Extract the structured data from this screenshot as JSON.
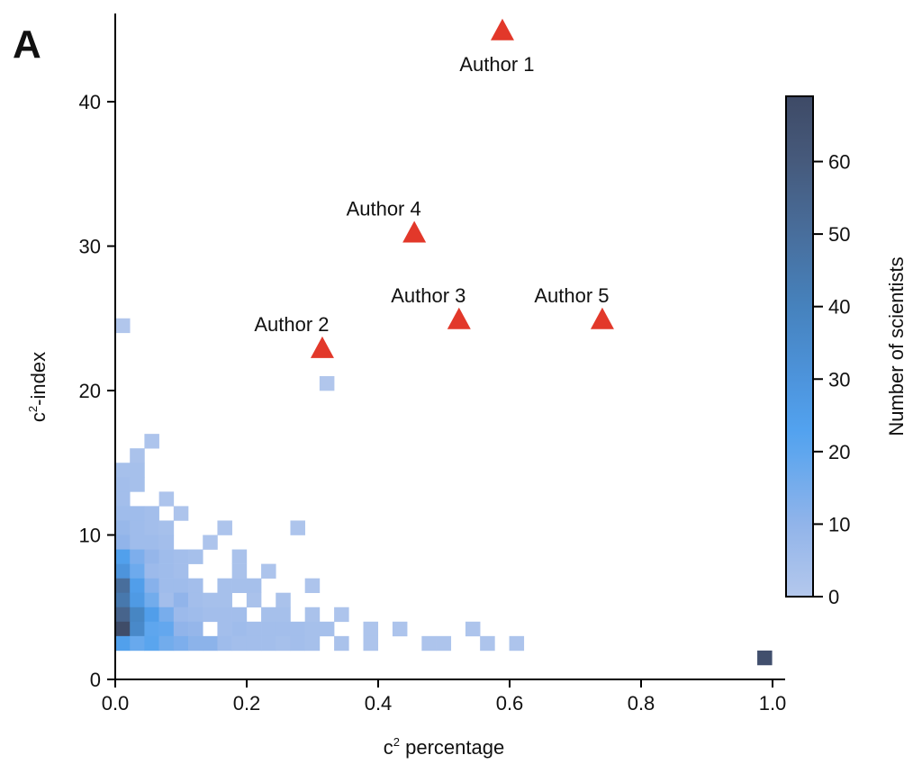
{
  "panel_label": "A",
  "chart_data": {
    "type": "heatmap",
    "xlabel_base": "c",
    "xlabel_sup": "2",
    "xlabel_rest": " percentage",
    "ylabel_base": "c",
    "ylabel_sup": "2",
    "ylabel_rest": "-index",
    "xlim": [
      0,
      1.0
    ],
    "ylim": [
      0,
      46
    ],
    "xticks": [
      "0.0",
      "0.2",
      "0.4",
      "0.6",
      "0.8",
      "1.0"
    ],
    "xtick_values": [
      0,
      0.2,
      0.4,
      0.6,
      0.8,
      1.0
    ],
    "yticks": [
      "0",
      "10",
      "20",
      "30",
      "40"
    ],
    "ytick_values": [
      0,
      10,
      20,
      30,
      40
    ],
    "grid": false,
    "bin_width_x": 0.0222,
    "bin_height_y": 1,
    "cells_note": "each cell = [x bin index, y bin index (y lower edge), count]",
    "cells": [
      [
        2,
        16,
        2
      ],
      [
        1,
        15,
        3
      ],
      [
        0,
        14,
        4
      ],
      [
        1,
        14,
        4
      ],
      [
        0,
        13,
        5
      ],
      [
        1,
        13,
        4
      ],
      [
        0,
        12,
        5
      ],
      [
        3,
        12,
        2
      ],
      [
        0,
        11,
        6
      ],
      [
        1,
        11,
        6
      ],
      [
        2,
        11,
        5
      ],
      [
        4,
        11,
        2
      ],
      [
        0,
        10,
        8
      ],
      [
        1,
        10,
        6
      ],
      [
        2,
        10,
        5
      ],
      [
        3,
        10,
        4
      ],
      [
        7,
        10,
        2
      ],
      [
        12,
        10,
        2
      ],
      [
        0,
        9,
        10
      ],
      [
        1,
        9,
        6
      ],
      [
        2,
        9,
        6
      ],
      [
        3,
        9,
        5
      ],
      [
        6,
        9,
        2
      ],
      [
        0,
        8,
        24
      ],
      [
        1,
        8,
        14
      ],
      [
        2,
        8,
        9
      ],
      [
        3,
        8,
        6
      ],
      [
        4,
        8,
        5
      ],
      [
        5,
        8,
        4
      ],
      [
        8,
        8,
        3
      ],
      [
        0,
        7,
        30
      ],
      [
        1,
        7,
        17
      ],
      [
        2,
        7,
        7
      ],
      [
        3,
        7,
        6
      ],
      [
        4,
        7,
        5
      ],
      [
        8,
        7,
        3
      ],
      [
        10,
        7,
        2
      ],
      [
        0,
        6,
        50
      ],
      [
        1,
        6,
        25
      ],
      [
        2,
        6,
        12
      ],
      [
        3,
        6,
        6
      ],
      [
        4,
        6,
        6
      ],
      [
        5,
        6,
        5
      ],
      [
        7,
        6,
        4
      ],
      [
        8,
        6,
        4
      ],
      [
        9,
        6,
        4
      ],
      [
        13,
        6,
        2
      ],
      [
        0,
        5,
        45
      ],
      [
        1,
        5,
        27
      ],
      [
        2,
        5,
        16
      ],
      [
        3,
        5,
        5
      ],
      [
        4,
        5,
        10
      ],
      [
        5,
        5,
        5
      ],
      [
        6,
        5,
        4
      ],
      [
        7,
        5,
        4
      ],
      [
        9,
        5,
        3
      ],
      [
        11,
        5,
        3
      ],
      [
        0,
        4,
        55
      ],
      [
        1,
        4,
        38
      ],
      [
        2,
        4,
        25
      ],
      [
        3,
        4,
        15
      ],
      [
        4,
        4,
        7
      ],
      [
        5,
        4,
        6
      ],
      [
        6,
        4,
        5
      ],
      [
        7,
        4,
        5
      ],
      [
        8,
        4,
        5
      ],
      [
        10,
        4,
        4
      ],
      [
        11,
        4,
        4
      ],
      [
        13,
        4,
        3
      ],
      [
        15,
        4,
        2
      ],
      [
        0,
        3,
        68
      ],
      [
        1,
        3,
        36
      ],
      [
        2,
        3,
        20
      ],
      [
        3,
        3,
        19
      ],
      [
        4,
        3,
        10
      ],
      [
        5,
        3,
        9
      ],
      [
        7,
        3,
        5
      ],
      [
        8,
        3,
        6
      ],
      [
        9,
        3,
        5
      ],
      [
        10,
        3,
        5
      ],
      [
        11,
        3,
        5
      ],
      [
        12,
        3,
        5
      ],
      [
        13,
        3,
        4
      ],
      [
        14,
        3,
        4
      ],
      [
        17,
        3,
        2
      ],
      [
        19,
        3,
        2
      ],
      [
        24,
        3,
        2
      ],
      [
        0,
        2,
        24
      ],
      [
        1,
        2,
        18
      ],
      [
        2,
        2,
        21
      ],
      [
        3,
        2,
        16
      ],
      [
        4,
        2,
        14
      ],
      [
        5,
        2,
        11
      ],
      [
        6,
        2,
        11
      ],
      [
        7,
        2,
        6
      ],
      [
        8,
        2,
        5
      ],
      [
        9,
        2,
        5
      ],
      [
        10,
        2,
        5
      ],
      [
        11,
        2,
        4
      ],
      [
        12,
        2,
        5
      ],
      [
        13,
        2,
        4
      ],
      [
        15,
        2,
        3
      ],
      [
        17,
        2,
        2
      ],
      [
        21,
        2,
        2
      ],
      [
        22,
        2,
        2
      ],
      [
        25,
        2,
        2
      ],
      [
        27,
        2,
        2
      ],
      [
        0,
        24,
        1
      ],
      [
        14,
        20,
        1
      ],
      [
        44,
        1,
        66
      ]
    ],
    "authors": [
      {
        "label": "Author 1",
        "x": 0.589,
        "y": 45
      },
      {
        "label": "Author 4",
        "x": 0.455,
        "y": 31
      },
      {
        "label": "Author 3",
        "x": 0.523,
        "y": 25
      },
      {
        "label": "Author 5",
        "x": 0.741,
        "y": 25
      },
      {
        "label": "Author 2",
        "x": 0.315,
        "y": 23
      }
    ],
    "marker_color": "#e2382a",
    "colorbar": {
      "label": "Number of scientists",
      "range": [
        0,
        69
      ],
      "ticks": [
        "0",
        "10",
        "20",
        "30",
        "40",
        "50",
        "60"
      ],
      "tick_values": [
        0,
        10,
        20,
        30,
        40,
        50,
        60
      ],
      "colormap": [
        [
          0,
          "#b4c8ec"
        ],
        [
          10,
          "#91b4ea"
        ],
        [
          20,
          "#5ea6ee"
        ],
        [
          23,
          "#52a2ef"
        ],
        [
          30,
          "#4d94dc"
        ],
        [
          40,
          "#4682bd"
        ],
        [
          50,
          "#486e9c"
        ],
        [
          60,
          "#465a7c"
        ],
        [
          69,
          "#3e4a66"
        ]
      ]
    }
  }
}
